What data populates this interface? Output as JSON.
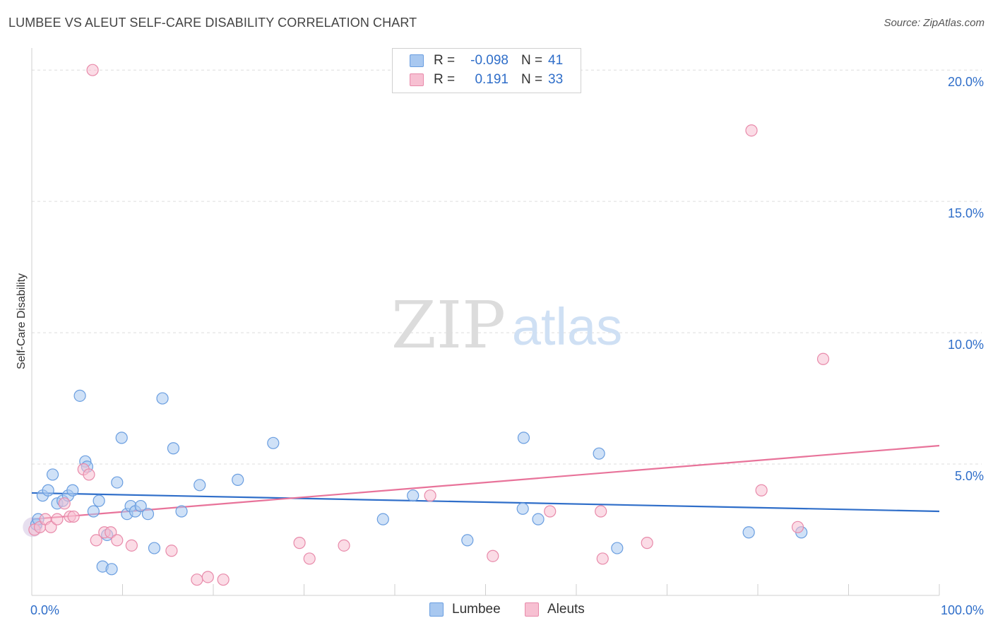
{
  "title": "LUMBEE VS ALEUT SELF-CARE DISABILITY CORRELATION CHART",
  "source": "Source: ZipAtlas.com",
  "watermark": {
    "zip": "ZIP",
    "atlas": "atlas"
  },
  "legend": {
    "rows": [
      {
        "r_label": "R =",
        "r_value": "-0.098",
        "n_label": "N =",
        "n_value": "41",
        "color": "#a8c8f0",
        "border": "#6a9ee0"
      },
      {
        "r_label": "R =",
        "r_value": "0.191",
        "n_label": "N =",
        "n_value": "33",
        "color": "#f7c0d2",
        "border": "#e88aaa"
      }
    ]
  },
  "bottom_legend": [
    {
      "label": "Lumbee",
      "color": "#a8c8f0",
      "border": "#6a9ee0"
    },
    {
      "label": "Aleuts",
      "color": "#f7c0d2",
      "border": "#e88aaa"
    }
  ],
  "chart_data": {
    "type": "scatter",
    "title": "LUMBEE VS ALEUT SELF-CARE DISABILITY CORRELATION CHART",
    "xlabel": "",
    "ylabel": "Self-Care Disability",
    "xlim": [
      0,
      100
    ],
    "ylim": [
      0,
      21
    ],
    "x_tick_labels": [
      "0.0%",
      "100.0%"
    ],
    "y_ticks": [
      5,
      10,
      15,
      20
    ],
    "y_tick_labels": [
      "5.0%",
      "10.0%",
      "15.0%",
      "20.0%"
    ],
    "grid": true,
    "series": [
      {
        "name": "Lumbee",
        "color": "#6a9ee0",
        "fill": "#a8c8f0",
        "line_color": "#2f6ec9",
        "trend": [
          [
            0,
            3.9
          ],
          [
            100,
            3.2
          ]
        ],
        "points": [
          [
            0.5,
            2.7
          ],
          [
            0.7,
            2.9
          ],
          [
            1.2,
            3.8
          ],
          [
            1.8,
            4.0
          ],
          [
            2.3,
            4.6
          ],
          [
            2.8,
            3.5
          ],
          [
            3.4,
            3.6
          ],
          [
            4.0,
            3.8
          ],
          [
            4.5,
            4.0
          ],
          [
            5.3,
            7.6
          ],
          [
            5.9,
            5.1
          ],
          [
            6.1,
            4.9
          ],
          [
            6.8,
            3.2
          ],
          [
            7.4,
            3.6
          ],
          [
            7.8,
            1.1
          ],
          [
            8.3,
            2.3
          ],
          [
            8.8,
            1.0
          ],
          [
            9.4,
            4.3
          ],
          [
            9.9,
            6.0
          ],
          [
            10.5,
            3.1
          ],
          [
            10.9,
            3.4
          ],
          [
            11.4,
            3.2
          ],
          [
            12.0,
            3.4
          ],
          [
            12.8,
            3.1
          ],
          [
            13.5,
            1.8
          ],
          [
            14.4,
            7.5
          ],
          [
            15.6,
            5.6
          ],
          [
            16.5,
            3.2
          ],
          [
            18.5,
            4.2
          ],
          [
            22.7,
            4.4
          ],
          [
            26.6,
            5.8
          ],
          [
            38.7,
            2.9
          ],
          [
            42.0,
            3.8
          ],
          [
            48.0,
            2.1
          ],
          [
            54.2,
            6.0
          ],
          [
            54.1,
            3.3
          ],
          [
            55.8,
            2.9
          ],
          [
            62.5,
            5.4
          ],
          [
            64.5,
            1.8
          ],
          [
            79.0,
            2.4
          ],
          [
            84.8,
            2.4
          ]
        ]
      },
      {
        "name": "Aleuts",
        "color": "#e88aaa",
        "fill": "#f7c0d2",
        "line_color": "#e8739a",
        "trend": [
          [
            0,
            2.9
          ],
          [
            100,
            5.7
          ]
        ],
        "points": [
          [
            0.3,
            2.5
          ],
          [
            0.9,
            2.6
          ],
          [
            1.5,
            2.9
          ],
          [
            2.1,
            2.6
          ],
          [
            2.8,
            2.9
          ],
          [
            3.6,
            3.5
          ],
          [
            4.2,
            3.0
          ],
          [
            4.6,
            3.0
          ],
          [
            5.7,
            4.8
          ],
          [
            6.3,
            4.6
          ],
          [
            7.1,
            2.1
          ],
          [
            8.0,
            2.4
          ],
          [
            8.7,
            2.4
          ],
          [
            9.4,
            2.1
          ],
          [
            11.0,
            1.9
          ],
          [
            15.4,
            1.7
          ],
          [
            18.2,
            0.6
          ],
          [
            19.4,
            0.7
          ],
          [
            21.1,
            0.6
          ],
          [
            29.5,
            2.0
          ],
          [
            30.6,
            1.4
          ],
          [
            34.4,
            1.9
          ],
          [
            43.9,
            3.8
          ],
          [
            50.8,
            1.5
          ],
          [
            57.1,
            3.2
          ],
          [
            62.7,
            3.2
          ],
          [
            62.9,
            1.4
          ],
          [
            67.8,
            2.0
          ],
          [
            79.3,
            17.7
          ],
          [
            80.4,
            4.0
          ],
          [
            84.4,
            2.6
          ],
          [
            87.2,
            9.0
          ],
          [
            6.7,
            20.0
          ]
        ]
      }
    ]
  }
}
